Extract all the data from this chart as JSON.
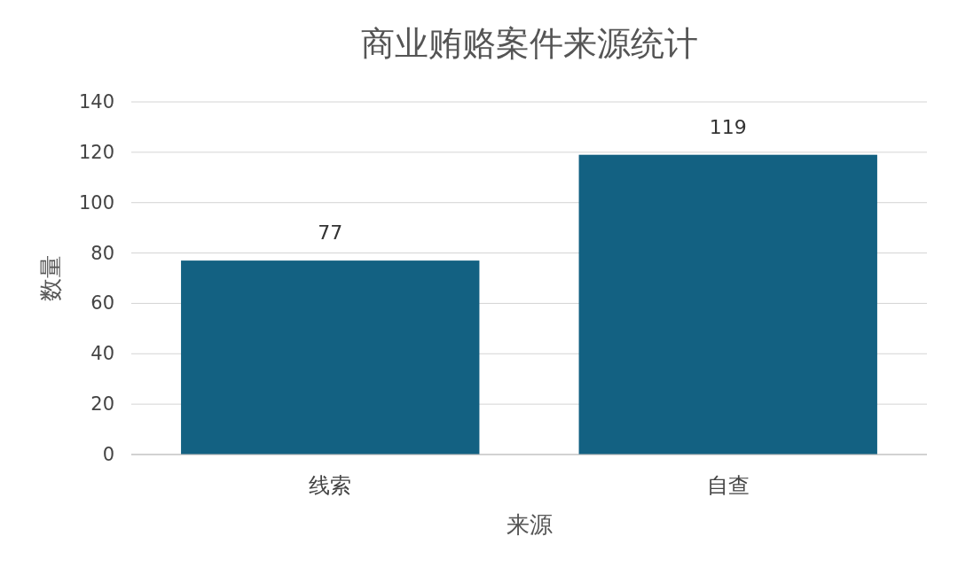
{
  "chart_data": {
    "type": "bar",
    "title": "商业贿赂案件来源统计",
    "xlabel": "来源",
    "ylabel": "数量",
    "categories": [
      "线索",
      "自查"
    ],
    "values": [
      77,
      119
    ],
    "color": "#136182",
    "ylim": [
      0,
      140
    ],
    "yticks": [
      0,
      20,
      40,
      60,
      80,
      100,
      120,
      140
    ],
    "grid": "y",
    "data_labels": true
  }
}
